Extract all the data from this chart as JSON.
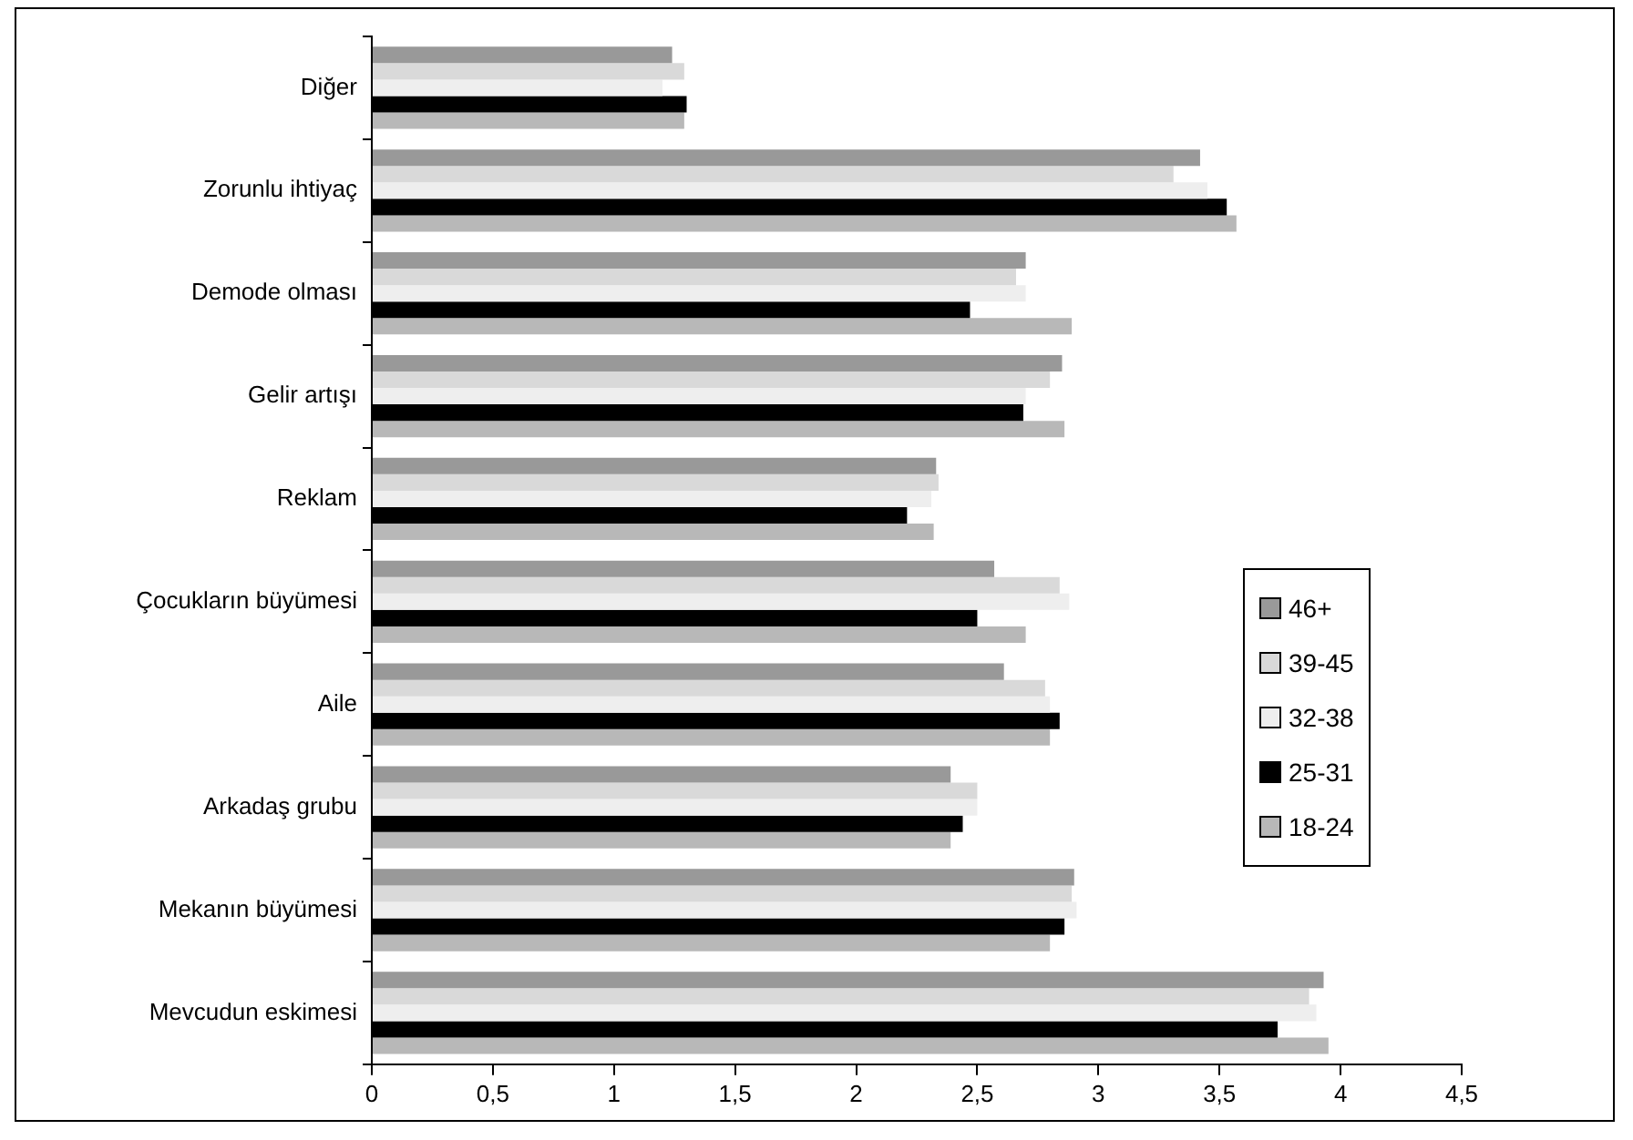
{
  "chart_data": {
    "type": "bar",
    "orientation": "horizontal",
    "categories": [
      "Diğer",
      "Zorunlu ihtiyaç",
      "Demode olması",
      "Gelir artışı",
      "Reklam",
      "Çocukların büyümesi",
      "Aile",
      "Arkadaş grubu",
      "Mekanın büyümesi",
      "Mevcudun eskimesi"
    ],
    "series": [
      {
        "name": "46+",
        "color": "#999999",
        "values": [
          1.24,
          3.42,
          2.7,
          2.85,
          2.33,
          2.57,
          2.61,
          2.39,
          2.9,
          3.93
        ]
      },
      {
        "name": "39-45",
        "color": "#d9d9d9",
        "values": [
          1.29,
          3.31,
          2.66,
          2.8,
          2.34,
          2.84,
          2.78,
          2.5,
          2.89,
          3.87
        ]
      },
      {
        "name": "32-38",
        "color": "#eeeeee",
        "values": [
          1.2,
          3.45,
          2.7,
          2.7,
          2.31,
          2.88,
          2.8,
          2.5,
          2.91,
          3.9
        ]
      },
      {
        "name": "25-31",
        "color": "#000000",
        "values": [
          1.3,
          3.53,
          2.47,
          2.69,
          2.21,
          2.5,
          2.84,
          2.44,
          2.86,
          3.74
        ]
      },
      {
        "name": "18-24",
        "color": "#b8b8b8",
        "values": [
          1.29,
          3.57,
          2.89,
          2.86,
          2.32,
          2.7,
          2.8,
          2.39,
          2.8,
          3.95
        ]
      }
    ],
    "xlim": [
      0,
      4.5
    ],
    "xticks": [
      0,
      {
        "value": 0.5,
        "label": "0,5"
      },
      1,
      {
        "value": 1.5,
        "label": "1,5"
      },
      2,
      {
        "value": 2.5,
        "label": "2,5"
      },
      3,
      {
        "value": 3.5,
        "label": "3,5"
      },
      4,
      {
        "value": 4.5,
        "label": "4,5"
      }
    ],
    "grid": false,
    "legend": "right"
  }
}
